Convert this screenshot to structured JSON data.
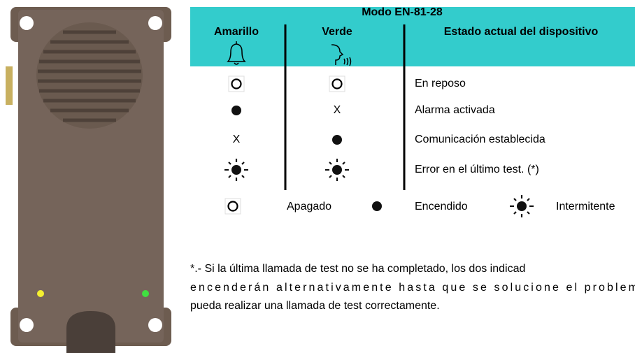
{
  "header": {
    "title": "Modo EN-81-28",
    "columns": [
      "Amarillo",
      "Verde",
      "Estado actual del dispositivo"
    ]
  },
  "table": {
    "rows": [
      [
        null,
        null,
        "En reposo"
      ],
      [
        null,
        "X",
        "Alarma activada"
      ],
      [
        "X",
        null,
        "Comunicación establecida"
      ],
      [
        null,
        null,
        "Error en el último test. (*)"
      ]
    ]
  },
  "legend": [
    "Apagado",
    "Encendido",
    "Intermitente"
  ],
  "footnote": [
    "*.- Si la última llamada de test no se ha completado, los dos indicad",
    "encenderán alternativamente hasta que se solucione el problem",
    "pueda realizar una llamada de test correctamente."
  ]
}
